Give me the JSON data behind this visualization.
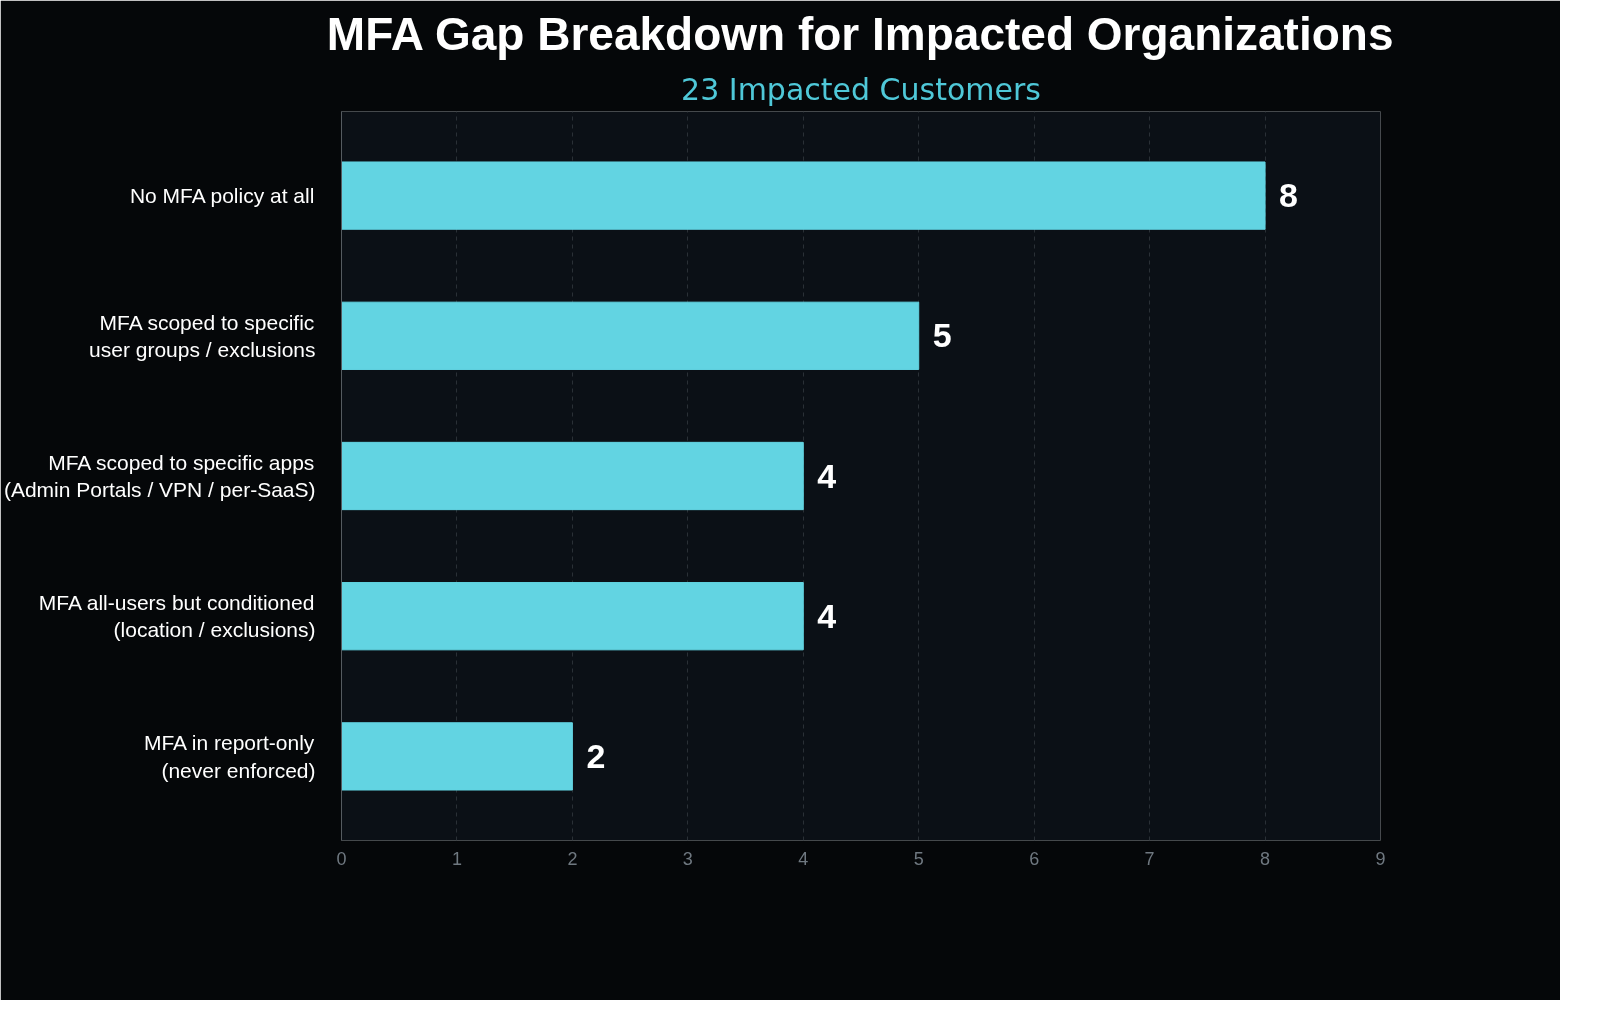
{
  "chart_data": {
    "type": "bar",
    "orientation": "horizontal",
    "title": "MFA Gap Breakdown for Impacted Organizations",
    "subtitle": "23 Impacted Customers",
    "categories": [
      "No MFA policy at all",
      "MFA scoped to specific\nuser groups / exclusions",
      "MFA scoped to specific apps\n(Admin Portals / VPN / per-SaaS)",
      "MFA all-users but conditioned\n(location / exclusions)",
      "MFA in report-only\n(never enforced)"
    ],
    "values": [
      8,
      5,
      4,
      4,
      2
    ],
    "color": "#62d4e2",
    "xlim": [
      0,
      9
    ],
    "xticks": [
      0,
      1,
      2,
      3,
      4,
      5,
      6,
      7,
      8,
      9
    ],
    "grid": "x",
    "data_labels": true
  }
}
